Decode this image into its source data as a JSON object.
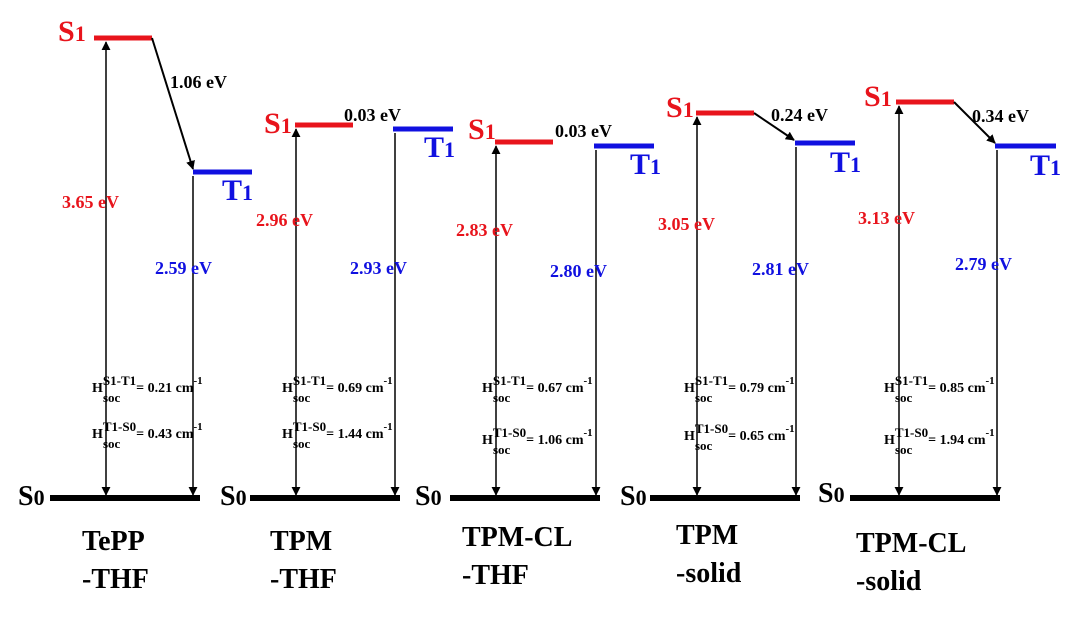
{
  "colors": {
    "singlet": "#e8141c",
    "triplet": "#1010e0",
    "ground": "#000000",
    "text": "#000000"
  },
  "state_labels": {
    "s1": "S1",
    "t1": "T1",
    "s0": "S0",
    "s_letter": "S",
    "t_letter": "T",
    "sub_1": "1",
    "sub_0": "0"
  },
  "soc": {
    "H": "H",
    "soc": "soc",
    "s1t1": "S1-T1",
    "t1s0": "T1-S0"
  },
  "panels": [
    {
      "name_line1": "TePP",
      "name_line2": "-THF",
      "s1_energy": "3.65 eV",
      "t1_energy": "2.59 eV",
      "gap": "1.06 eV",
      "soc_s1t1": "= 0.21 cm",
      "soc_t1s0": "= 0.43 cm",
      "unit_exp": "-1"
    },
    {
      "name_line1": "TPM",
      "name_line2": "-THF",
      "s1_energy": "2.96 eV",
      "t1_energy": "2.93 eV",
      "gap": "0.03 eV",
      "soc_s1t1": "= 0.69 cm",
      "soc_t1s0": "= 1.44 cm",
      "unit_exp": "-1"
    },
    {
      "name_line1": "TPM-CL",
      "name_line2": "-THF",
      "s1_energy": "2.83 eV",
      "t1_energy": "2.80 eV",
      "gap": "0.03 eV",
      "soc_s1t1": "= 0.67 cm",
      "soc_t1s0": "= 1.06 cm",
      "unit_exp": "-1"
    },
    {
      "name_line1": "TPM",
      "name_line2": "-solid",
      "s1_energy": "3.05 eV",
      "t1_energy": "2.81 eV",
      "gap": "0.24 eV",
      "soc_s1t1": "= 0.79 cm",
      "soc_t1s0": "= 0.65 cm",
      "unit_exp": "-1"
    },
    {
      "name_line1": "TPM-CL",
      "name_line2": "-solid",
      "s1_energy": "3.13 eV",
      "t1_energy": "2.79 eV",
      "gap": "0.34 eV",
      "soc_s1t1": "= 0.85 cm",
      "soc_t1s0": "= 1.94 cm",
      "unit_exp": "-1"
    }
  ]
}
